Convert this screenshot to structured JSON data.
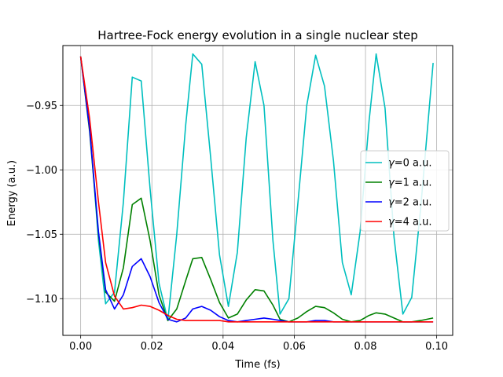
{
  "chart_data": {
    "type": "line",
    "title": "Hartree-Fock energy evolution in a single nuclear step",
    "xlabel": "Time (fs)",
    "ylabel": "Energy (a.u.)",
    "xlim": [
      -0.005,
      0.1045
    ],
    "ylim": [
      -1.1285,
      -0.9035
    ],
    "xticks": [
      0.0,
      0.02,
      0.04,
      0.06,
      0.08,
      0.1
    ],
    "xtick_labels": [
      "0.00",
      "0.02",
      "0.04",
      "0.06",
      "0.08",
      "0.10"
    ],
    "yticks": [
      -1.1,
      -1.05,
      -1.0,
      -0.95
    ],
    "ytick_labels": [
      "−1.10",
      "−1.05",
      "−1.00",
      "−0.95"
    ],
    "grid": true,
    "legend_position": "center-right",
    "x": [
      0.0,
      0.0025,
      0.005,
      0.007,
      0.0095,
      0.012,
      0.0145,
      0.017,
      0.0195,
      0.022,
      0.0245,
      0.027,
      0.0295,
      0.0315,
      0.034,
      0.0365,
      0.039,
      0.0415,
      0.044,
      0.0465,
      0.049,
      0.0515,
      0.054,
      0.056,
      0.0585,
      0.061,
      0.0635,
      0.066,
      0.0685,
      0.071,
      0.0735,
      0.076,
      0.0785,
      0.081,
      0.083,
      0.0855,
      0.088,
      0.0905,
      0.093,
      0.0955,
      0.099
    ],
    "series": [
      {
        "name": "=0 a.u.",
        "symbol": "γ",
        "color": "#00bfbf",
        "values": [
          -0.912,
          -0.965,
          -1.055,
          -1.104,
          -1.095,
          -1.025,
          -0.928,
          -0.931,
          -1.015,
          -1.088,
          -1.117,
          -1.05,
          -0.965,
          -0.91,
          -0.918,
          -0.99,
          -1.066,
          -1.106,
          -1.064,
          -0.975,
          -0.916,
          -0.95,
          -1.055,
          -1.112,
          -1.1,
          -1.026,
          -0.95,
          -0.911,
          -0.935,
          -0.993,
          -1.072,
          -1.097,
          -1.048,
          -0.962,
          -0.91,
          -0.952,
          -1.052,
          -1.112,
          -1.099,
          -1.03,
          -0.917
        ]
      },
      {
        "name": "=1 a.u.",
        "symbol": "γ",
        "color": "#008000",
        "values": [
          -0.912,
          -0.97,
          -1.05,
          -1.095,
          -1.102,
          -1.076,
          -1.027,
          -1.022,
          -1.055,
          -1.097,
          -1.117,
          -1.108,
          -1.086,
          -1.069,
          -1.068,
          -1.085,
          -1.103,
          -1.115,
          -1.112,
          -1.101,
          -1.093,
          -1.094,
          -1.105,
          -1.116,
          -1.118,
          -1.115,
          -1.11,
          -1.106,
          -1.107,
          -1.111,
          -1.116,
          -1.118,
          -1.117,
          -1.113,
          -1.111,
          -1.112,
          -1.115,
          -1.118,
          -1.118,
          -1.117,
          -1.115
        ]
      },
      {
        "name": "=2 a.u.",
        "symbol": "γ",
        "color": "#0000ff",
        "values": [
          -0.912,
          -0.968,
          -1.048,
          -1.093,
          -1.108,
          -1.097,
          -1.075,
          -1.069,
          -1.083,
          -1.103,
          -1.116,
          -1.118,
          -1.115,
          -1.108,
          -1.106,
          -1.109,
          -1.114,
          -1.117,
          -1.118,
          -1.117,
          -1.116,
          -1.115,
          -1.116,
          -1.117,
          -1.118,
          -1.118,
          -1.118,
          -1.117,
          -1.117,
          -1.118,
          -1.118,
          -1.118,
          -1.118,
          -1.118,
          -1.118,
          -1.118,
          -1.118,
          -1.118,
          -1.118,
          -1.118,
          -1.118
        ]
      },
      {
        "name": "=4 a.u.",
        "symbol": "γ",
        "color": "#ff0000",
        "values": [
          -0.912,
          -0.96,
          -1.025,
          -1.072,
          -1.098,
          -1.108,
          -1.107,
          -1.105,
          -1.106,
          -1.109,
          -1.113,
          -1.116,
          -1.117,
          -1.117,
          -1.117,
          -1.117,
          -1.117,
          -1.118,
          -1.118,
          -1.118,
          -1.118,
          -1.118,
          -1.118,
          -1.118,
          -1.118,
          -1.118,
          -1.118,
          -1.118,
          -1.118,
          -1.118,
          -1.118,
          -1.118,
          -1.118,
          -1.118,
          -1.118,
          -1.118,
          -1.118,
          -1.118,
          -1.118,
          -1.118,
          -1.118
        ]
      }
    ]
  }
}
